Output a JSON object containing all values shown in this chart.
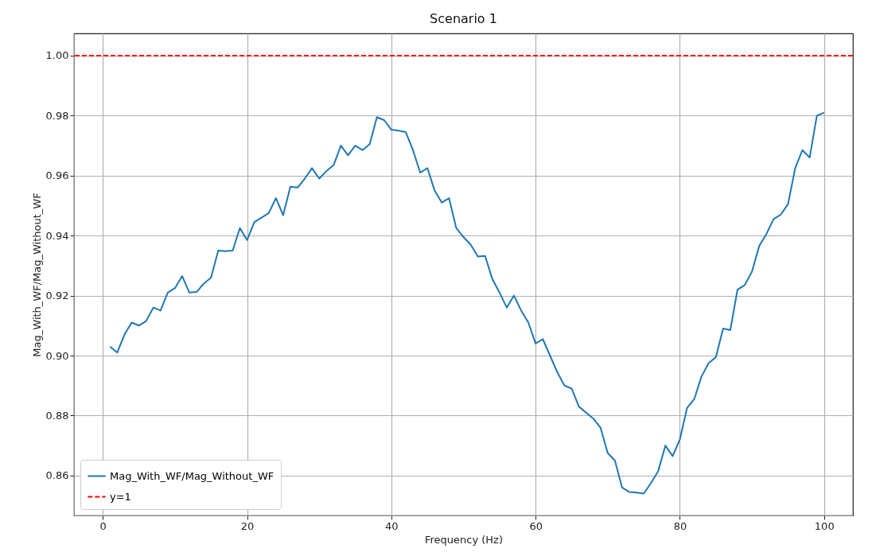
{
  "chart_data": {
    "type": "line",
    "title": "Scenario 1",
    "xlabel": "Frequency (Hz)",
    "ylabel": "Mag_With_WF/Mag_Without_WF",
    "x": [
      1,
      2,
      3,
      4,
      5,
      6,
      7,
      8,
      9,
      10,
      11,
      12,
      13,
      14,
      15,
      16,
      17,
      18,
      19,
      20,
      21,
      22,
      23,
      24,
      25,
      26,
      27,
      28,
      29,
      30,
      31,
      32,
      33,
      34,
      35,
      36,
      37,
      38,
      39,
      40,
      41,
      42,
      43,
      44,
      45,
      46,
      47,
      48,
      49,
      50,
      51,
      52,
      53,
      54,
      55,
      56,
      57,
      58,
      59,
      60,
      61,
      62,
      63,
      64,
      65,
      66,
      67,
      68,
      69,
      70,
      71,
      72,
      73,
      74,
      75,
      76,
      77,
      78,
      79,
      80,
      81,
      82,
      83,
      84,
      85,
      86,
      87,
      88,
      89,
      90,
      91,
      92,
      93,
      94,
      95,
      96,
      97,
      98,
      99,
      100
    ],
    "series": [
      {
        "name": "Mag_With_WF/Mag_Without_WF",
        "color": "#1f77b4",
        "values": [
          0.903,
          0.901,
          0.907,
          0.911,
          0.91,
          0.9115,
          0.916,
          0.915,
          0.921,
          0.9225,
          0.9265,
          0.921,
          0.9212,
          0.924,
          0.926,
          0.935,
          0.9348,
          0.935,
          0.9425,
          0.9385,
          0.9445,
          0.946,
          0.9475,
          0.9525,
          0.9468,
          0.9563,
          0.956,
          0.959,
          0.9625,
          0.959,
          0.9615,
          0.9635,
          0.97,
          0.9668,
          0.97,
          0.9685,
          0.9705,
          0.9795,
          0.9785,
          0.9753,
          0.975,
          0.9745,
          0.9685,
          0.961,
          0.9625,
          0.955,
          0.951,
          0.9525,
          0.9425,
          0.9395,
          0.937,
          0.933,
          0.9332,
          0.9255,
          0.921,
          0.916,
          0.92,
          0.915,
          0.911,
          0.904,
          0.9055,
          0.9,
          0.8945,
          0.89,
          0.889,
          0.883,
          0.881,
          0.879,
          0.876,
          0.8675,
          0.865,
          0.856,
          0.8545,
          0.8543,
          0.854,
          0.8575,
          0.8615,
          0.87,
          0.8665,
          0.872,
          0.8825,
          0.8855,
          0.893,
          0.8975,
          0.8995,
          0.909,
          0.9085,
          0.922,
          0.9235,
          0.928,
          0.9365,
          0.9405,
          0.9455,
          0.947,
          0.9505,
          0.9625,
          0.9685,
          0.966,
          0.98,
          0.981
        ]
      }
    ],
    "ref_lines": [
      {
        "axis": "y",
        "value": 1,
        "label": "y=1",
        "color": "#ff0000",
        "line_style": "dashed"
      }
    ],
    "xlim": [
      -4,
      104
    ],
    "xticks": [
      0,
      20,
      40,
      60,
      80,
      100
    ],
    "ylim": [
      0.8467,
      1.0074
    ],
    "yticks": [
      {
        "value": 0.86,
        "label": "0.86"
      },
      {
        "value": 0.88,
        "label": "0.88"
      },
      {
        "value": 0.9,
        "label": "0.90"
      },
      {
        "value": 0.92,
        "label": "0.92"
      },
      {
        "value": 0.94,
        "label": "0.94"
      },
      {
        "value": 0.96,
        "label": "0.96"
      },
      {
        "value": 0.98,
        "label": "0.98"
      },
      {
        "value": 1,
        "label": "1.00"
      }
    ],
    "grid": true,
    "legend": "bottom left",
    "line_style": "solid"
  }
}
